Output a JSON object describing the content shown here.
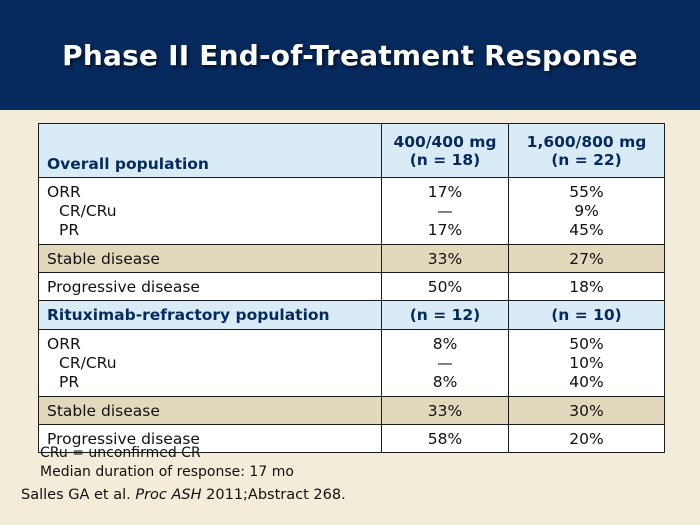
{
  "slide": {
    "title": "Phase II End-of-Treatment Response"
  },
  "table": {
    "header": {
      "label": "Overall population",
      "col1_line1": "400/400 mg",
      "col1_line2": "(n = 18)",
      "col2_line1": "1,600/800 mg",
      "col2_line2": "(n = 22)"
    },
    "overall": {
      "orr": {
        "labels": [
          "ORR",
          "CR/CRu",
          "PR"
        ],
        "col1": [
          "17%",
          "—",
          "17%"
        ],
        "col2": [
          "55%",
          "9%",
          "45%"
        ]
      },
      "stable": {
        "label": "Stable disease",
        "col1": "33%",
        "col2": "27%"
      },
      "progressive": {
        "label": "Progressive disease",
        "col1": "50%",
        "col2": "18%"
      }
    },
    "refractory_header": {
      "label": "Rituximab-refractory population",
      "col1": "(n = 12)",
      "col2": "(n = 10)"
    },
    "refractory": {
      "orr": {
        "labels": [
          "ORR",
          "CR/CRu",
          "PR"
        ],
        "col1": [
          "8%",
          "—",
          "8%"
        ],
        "col2": [
          "50%",
          "10%",
          "40%"
        ]
      },
      "stable": {
        "label": "Stable disease",
        "col1": "33%",
        "col2": "30%"
      },
      "progressive": {
        "label": "Progressive disease",
        "col1": "58%",
        "col2": "20%"
      }
    }
  },
  "notes": {
    "line1": "CRu = unconfirmed CR",
    "line2": "Median duration of response: 17 mo"
  },
  "citation": {
    "authors": "Salles GA et al.",
    "journal": "Proc ASH",
    "detail": "2011;Abstract 268."
  },
  "colors": {
    "title_bar": "#062a5e",
    "background": "#f3ecd9",
    "header_fill": "#d8ebf6",
    "tan_fill": "#e2d9bd"
  }
}
